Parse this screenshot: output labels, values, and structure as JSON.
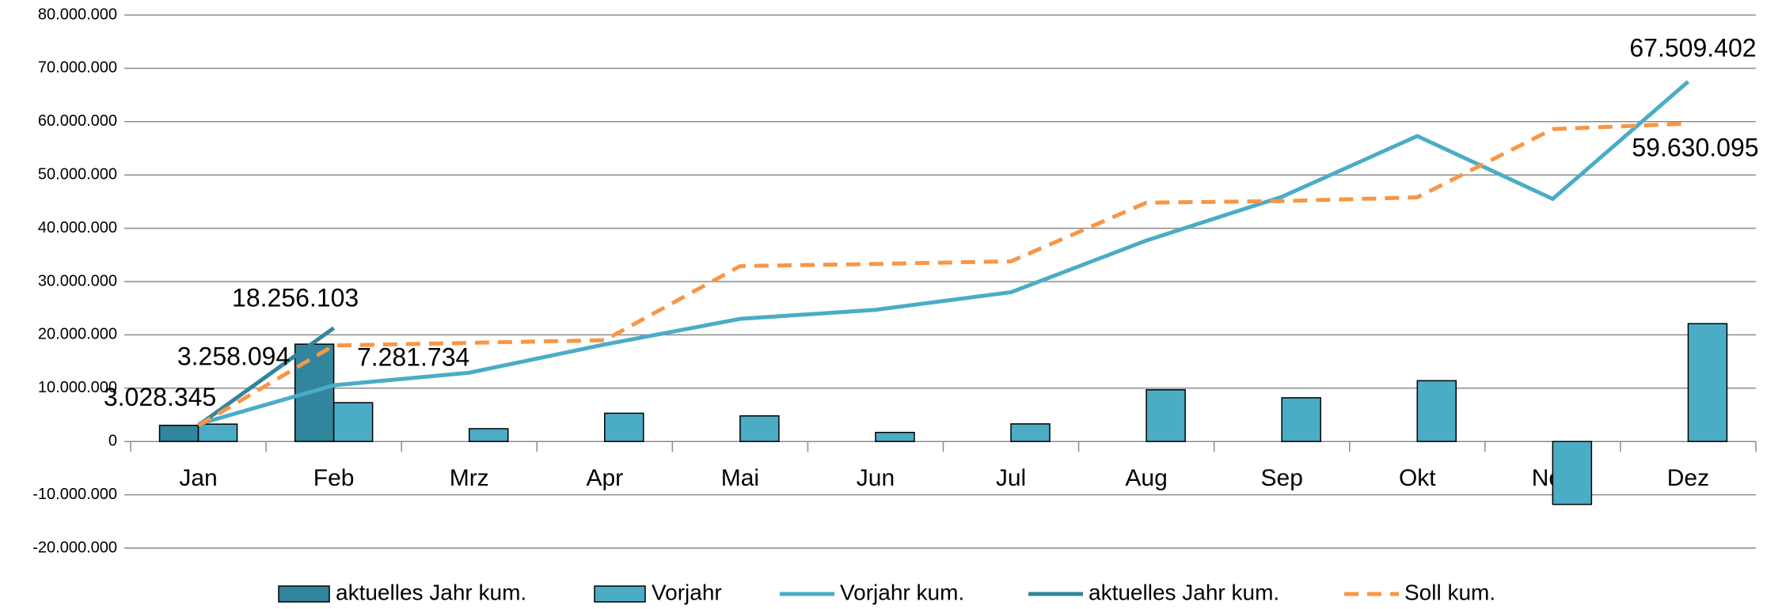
{
  "chart_data": {
    "type": "bar",
    "categories": [
      "Jan",
      "Feb",
      "Mrz",
      "Apr",
      "Mai",
      "Jun",
      "Jul",
      "Aug",
      "Sep",
      "Okt",
      "Nov",
      "Dez"
    ],
    "ylim": [
      -20000000,
      80000000
    ],
    "yticks": [
      {
        "value": -20000000,
        "label": "-20.000.000"
      },
      {
        "value": -10000000,
        "label": "-10.000.000"
      },
      0,
      {
        "value": 10000000,
        "label": "10.000.000"
      },
      {
        "value": 20000000,
        "label": "20.000.000"
      },
      {
        "value": 30000000,
        "label": "30.000.000"
      },
      {
        "value": 40000000,
        "label": "40.000.000"
      },
      {
        "value": 50000000,
        "label": "50.000.000"
      },
      {
        "value": 60000000,
        "label": "60.000.000"
      },
      {
        "value": 70000000,
        "label": "70.000.000"
      },
      {
        "value": 80000000,
        "label": "80.000.000"
      }
    ],
    "grid": true,
    "legend": "bottom",
    "series": [
      {
        "name": "aktuelles Jahr kum.",
        "type": "bar",
        "color": "#31859c",
        "values": [
          3028345,
          18256103,
          null,
          null,
          null,
          null,
          null,
          null,
          null,
          null,
          null,
          null
        ],
        "value_labels": [
          "3.028.345",
          "18.256.103",
          null,
          null,
          null,
          null,
          null,
          null,
          null,
          null,
          null,
          null
        ]
      },
      {
        "name": "Vorjahr",
        "type": "bar",
        "color": "#4bacc6",
        "values": [
          3258094,
          7281734,
          2400000,
          5300000,
          4800000,
          1700000,
          3300000,
          9700000,
          8200000,
          11400000,
          -11800000,
          22100000
        ],
        "value_labels": [
          "3.258.094",
          "7.281.734",
          null,
          null,
          null,
          null,
          null,
          null,
          null,
          null,
          null,
          null
        ]
      },
      {
        "name": "Vorjahr kum.",
        "type": "line",
        "color": "#4bacc6",
        "values": [
          3258094,
          10539828,
          12900000,
          18200000,
          23000000,
          24700000,
          28000000,
          37700000,
          45900000,
          57300000,
          45500000,
          67509402
        ],
        "value_labels": [
          null,
          null,
          null,
          null,
          null,
          null,
          null,
          null,
          null,
          null,
          null,
          "67.509.402"
        ]
      },
      {
        "name": "aktuelles Jahr kum.",
        "type": "line",
        "color": "#31859c",
        "values": [
          3028345,
          21284448,
          null,
          null,
          null,
          null,
          null,
          null,
          null,
          null,
          null,
          null
        ]
      },
      {
        "name": "Soll kum.",
        "type": "line",
        "dashed": true,
        "color": "#f79646",
        "values": [
          3000000,
          18000000,
          18500000,
          19000000,
          32900000,
          33300000,
          33800000,
          44800000,
          45100000,
          45800000,
          58600000,
          59630095
        ],
        "value_labels": [
          null,
          null,
          null,
          null,
          null,
          null,
          null,
          null,
          null,
          null,
          null,
          "59.630.095"
        ]
      }
    ]
  }
}
